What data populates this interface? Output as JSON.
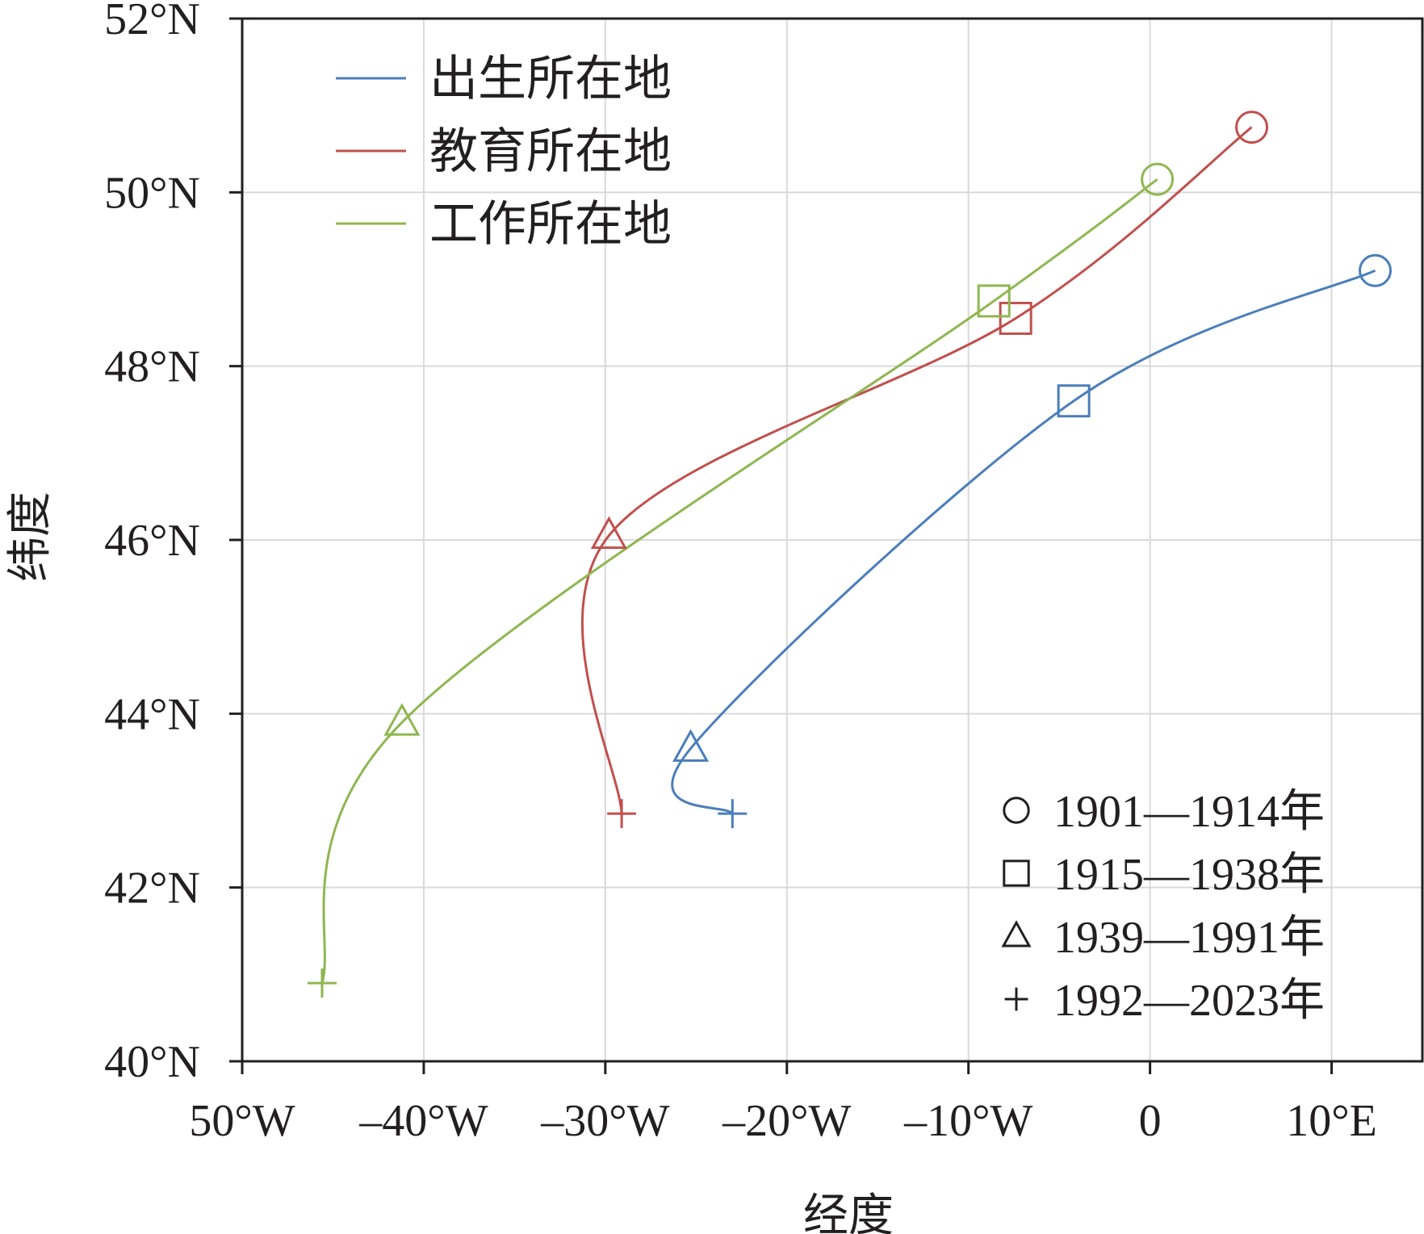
{
  "chart_data": {
    "type": "line",
    "xlabel": "经度",
    "ylabel": "纬度",
    "xlim": [
      -50,
      15
    ],
    "ylim": [
      40,
      52
    ],
    "x_ticks": [
      {
        "value": -50,
        "label": "50°W"
      },
      {
        "value": -40,
        "label": "–40°W"
      },
      {
        "value": -30,
        "label": "–30°W"
      },
      {
        "value": -20,
        "label": "–20°W"
      },
      {
        "value": -10,
        "label": "–10°W"
      },
      {
        "value": 0,
        "label": "0"
      },
      {
        "value": 10,
        "label": "10°E"
      }
    ],
    "y_ticks": [
      {
        "value": 40,
        "label": "40°N"
      },
      {
        "value": 42,
        "label": "42°N"
      },
      {
        "value": 44,
        "label": "44°N"
      },
      {
        "value": 46,
        "label": "46°N"
      },
      {
        "value": 48,
        "label": "48°N"
      },
      {
        "value": 50,
        "label": "50°N"
      },
      {
        "value": 52,
        "label": "52°N"
      }
    ],
    "grid": true,
    "series_legend_position": "top-left",
    "period_legend_position": "bottom-right",
    "periods": [
      {
        "label": "1901—1914年",
        "marker": "circle"
      },
      {
        "label": "1915—1938年",
        "marker": "square"
      },
      {
        "label": "1939—1991年",
        "marker": "triangle"
      },
      {
        "label": "1992—2023年",
        "marker": "plus"
      }
    ],
    "series": [
      {
        "name": "出生所在地",
        "color": "#4a7ebb",
        "points": [
          {
            "x": 12.4,
            "y": 49.1
          },
          {
            "x": -4.2,
            "y": 47.6
          },
          {
            "x": -25.3,
            "y": 43.6
          },
          {
            "x": -23.0,
            "y": 42.85
          }
        ]
      },
      {
        "name": "教育所在地",
        "color": "#c0504d",
        "points": [
          {
            "x": 5.6,
            "y": 50.75
          },
          {
            "x": -7.4,
            "y": 48.55
          },
          {
            "x": -29.8,
            "y": 46.05
          },
          {
            "x": -29.1,
            "y": 42.85
          }
        ]
      },
      {
        "name": "工作所在地",
        "color": "#8fb650",
        "points": [
          {
            "x": 0.4,
            "y": 50.15
          },
          {
            "x": -8.6,
            "y": 48.75
          },
          {
            "x": -41.2,
            "y": 43.9
          },
          {
            "x": -45.6,
            "y": 40.9
          }
        ]
      }
    ]
  }
}
